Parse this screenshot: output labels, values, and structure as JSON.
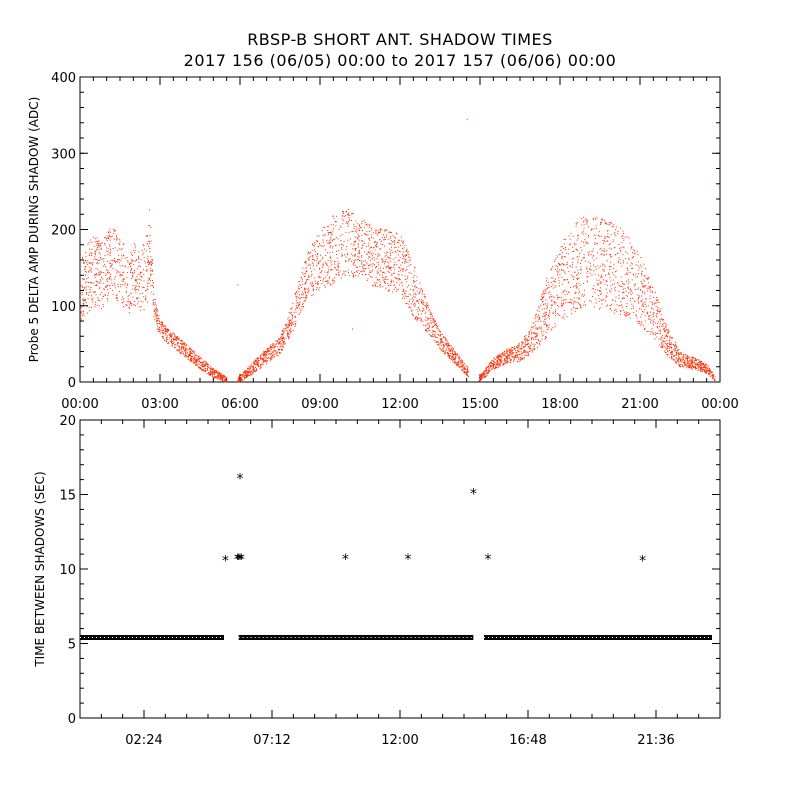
{
  "title": "RBSP-B SHORT ANT. SHADOW TIMES",
  "subtitle": "2017 156 (06/05) 00:00 to 2017 157 (06/06) 00:00",
  "colors": {
    "series_top": "#ff2a00",
    "series_bottom": "#000000",
    "axis": "#000000"
  },
  "chart_data": [
    {
      "type": "scatter",
      "ylabel": "Probe 5 DELTA AMP DURING SHADOW (ADC)",
      "xlabel": "",
      "xlim": [
        0,
        24
      ],
      "ylim": [
        0,
        400
      ],
      "x_tick_labels": [
        "00:00",
        "03:00",
        "06:00",
        "09:00",
        "12:00",
        "15:00",
        "18:00",
        "21:00",
        "00:00"
      ],
      "x_tick_values": [
        0,
        3,
        6,
        9,
        12,
        15,
        18,
        21,
        24
      ],
      "y_tick_labels": [
        "0",
        "100",
        "200",
        "300",
        "400"
      ],
      "y_tick_values": [
        0,
        100,
        200,
        300,
        400
      ],
      "grid": false,
      "series": [
        {
          "color": "#ff2a00",
          "x": [
            0.0,
            0.25,
            0.5,
            0.75,
            1.0,
            1.25,
            1.5,
            1.75,
            2.0,
            2.25,
            2.5,
            2.6,
            2.75,
            3.0,
            3.5,
            4.0,
            4.5,
            5.0,
            5.4,
            5.75,
            6.0,
            6.5,
            7.0,
            7.5,
            8.0,
            8.5,
            9.0,
            9.5,
            10.0,
            10.5,
            11.0,
            11.5,
            12.0,
            12.5,
            13.0,
            13.5,
            14.0,
            14.5,
            14.75,
            15.0,
            15.5,
            16.0,
            16.5,
            17.0,
            17.5,
            18.0,
            18.5,
            19.0,
            19.5,
            20.0,
            20.5,
            21.0,
            21.5,
            22.0,
            22.5,
            23.0,
            23.5,
            23.8
          ],
          "y": [
            120,
            135,
            150,
            140,
            150,
            160,
            150,
            130,
            140,
            130,
            150,
            190,
            100,
            70,
            55,
            40,
            25,
            12,
            5,
            2,
            5,
            20,
            35,
            50,
            90,
            140,
            160,
            175,
            185,
            175,
            165,
            160,
            155,
            120,
            85,
            55,
            35,
            15,
            5,
            5,
            25,
            35,
            40,
            60,
            100,
            130,
            150,
            160,
            155,
            150,
            140,
            120,
            90,
            55,
            30,
            25,
            18,
            5
          ],
          "spread": [
            40,
            45,
            50,
            45,
            45,
            50,
            45,
            40,
            45,
            40,
            50,
            50,
            15,
            12,
            10,
            9,
            8,
            6,
            4,
            3,
            4,
            8,
            10,
            12,
            20,
            30,
            40,
            45,
            45,
            40,
            40,
            40,
            40,
            35,
            20,
            12,
            9,
            6,
            4,
            4,
            8,
            10,
            12,
            20,
            40,
            50,
            60,
            60,
            60,
            60,
            55,
            45,
            35,
            20,
            10,
            8,
            6,
            3
          ]
        }
      ]
    },
    {
      "type": "scatter",
      "ylabel": "TIME BETWEEN SHADOWS (SEC)",
      "xlabel": "",
      "xlim": [
        0,
        24
      ],
      "ylim": [
        0,
        20
      ],
      "x_tick_labels": [
        "02:24",
        "07:12",
        "12:00",
        "16:48",
        "21:36"
      ],
      "x_tick_values": [
        2.4,
        7.2,
        12.0,
        16.8,
        21.6
      ],
      "y_tick_labels": [
        "0",
        "5",
        "10",
        "15",
        "20"
      ],
      "y_tick_values": [
        0,
        5,
        10,
        15,
        20
      ],
      "grid": false,
      "baseline": {
        "y": 5.4,
        "segments": [
          [
            0.0,
            5.4
          ],
          [
            5.95,
            14.75
          ],
          [
            15.15,
            23.7
          ]
        ]
      },
      "series": [
        {
          "color": "#000000",
          "marker": "*",
          "x": [
            5.45,
            5.9,
            5.95,
            6.0,
            6.05,
            6.0,
            9.95,
            12.3,
            14.75,
            15.3,
            21.1
          ],
          "y": [
            10.7,
            10.8,
            10.8,
            10.8,
            10.8,
            16.2,
            10.8,
            10.8,
            15.2,
            10.8,
            10.7
          ]
        }
      ]
    }
  ]
}
